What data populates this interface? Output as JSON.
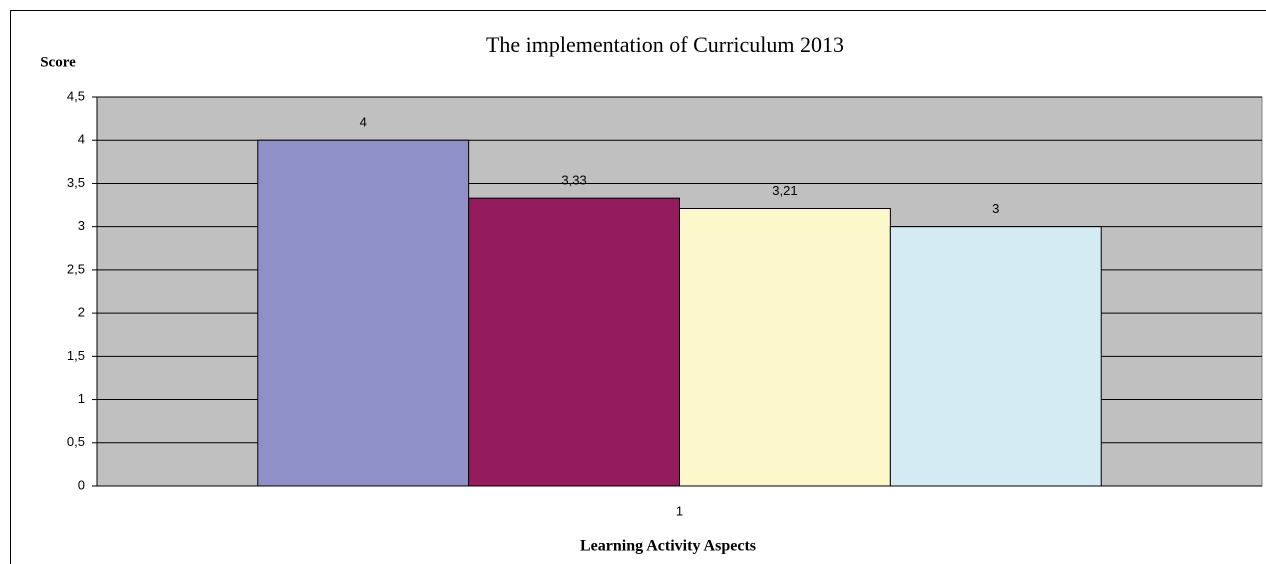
{
  "chart_data": {
    "type": "bar",
    "title": "The implementation of Curriculum 2013",
    "y_label": "Score",
    "x_label": "Learning Activity Aspects",
    "categories": [
      "1"
    ],
    "series": [
      {
        "color": "#9090c8",
        "values": [
          4
        ],
        "value_labels": [
          "4"
        ]
      },
      {
        "color": "#951c5c",
        "values": [
          3.33
        ],
        "value_labels": [
          "3,33"
        ]
      },
      {
        "color": "#fdf8cc",
        "values": [
          3.21
        ],
        "value_labels": [
          "3,21"
        ]
      },
      {
        "color": "#d4ebf3",
        "values": [
          3
        ],
        "value_labels": [
          "3"
        ]
      }
    ],
    "ylim": [
      0,
      4.5
    ],
    "yticks": [
      0,
      {
        "value": 0.5,
        "label": "0,5"
      },
      1,
      {
        "value": 1.5,
        "label": "1,5"
      },
      2,
      {
        "value": 2.5,
        "label": "2,5"
      },
      3,
      {
        "value": 3.5,
        "label": "3,5"
      },
      4,
      {
        "value": 4.5,
        "label": "4,5"
      }
    ],
    "grid": true,
    "plot_background": "#c0c0c0"
  }
}
